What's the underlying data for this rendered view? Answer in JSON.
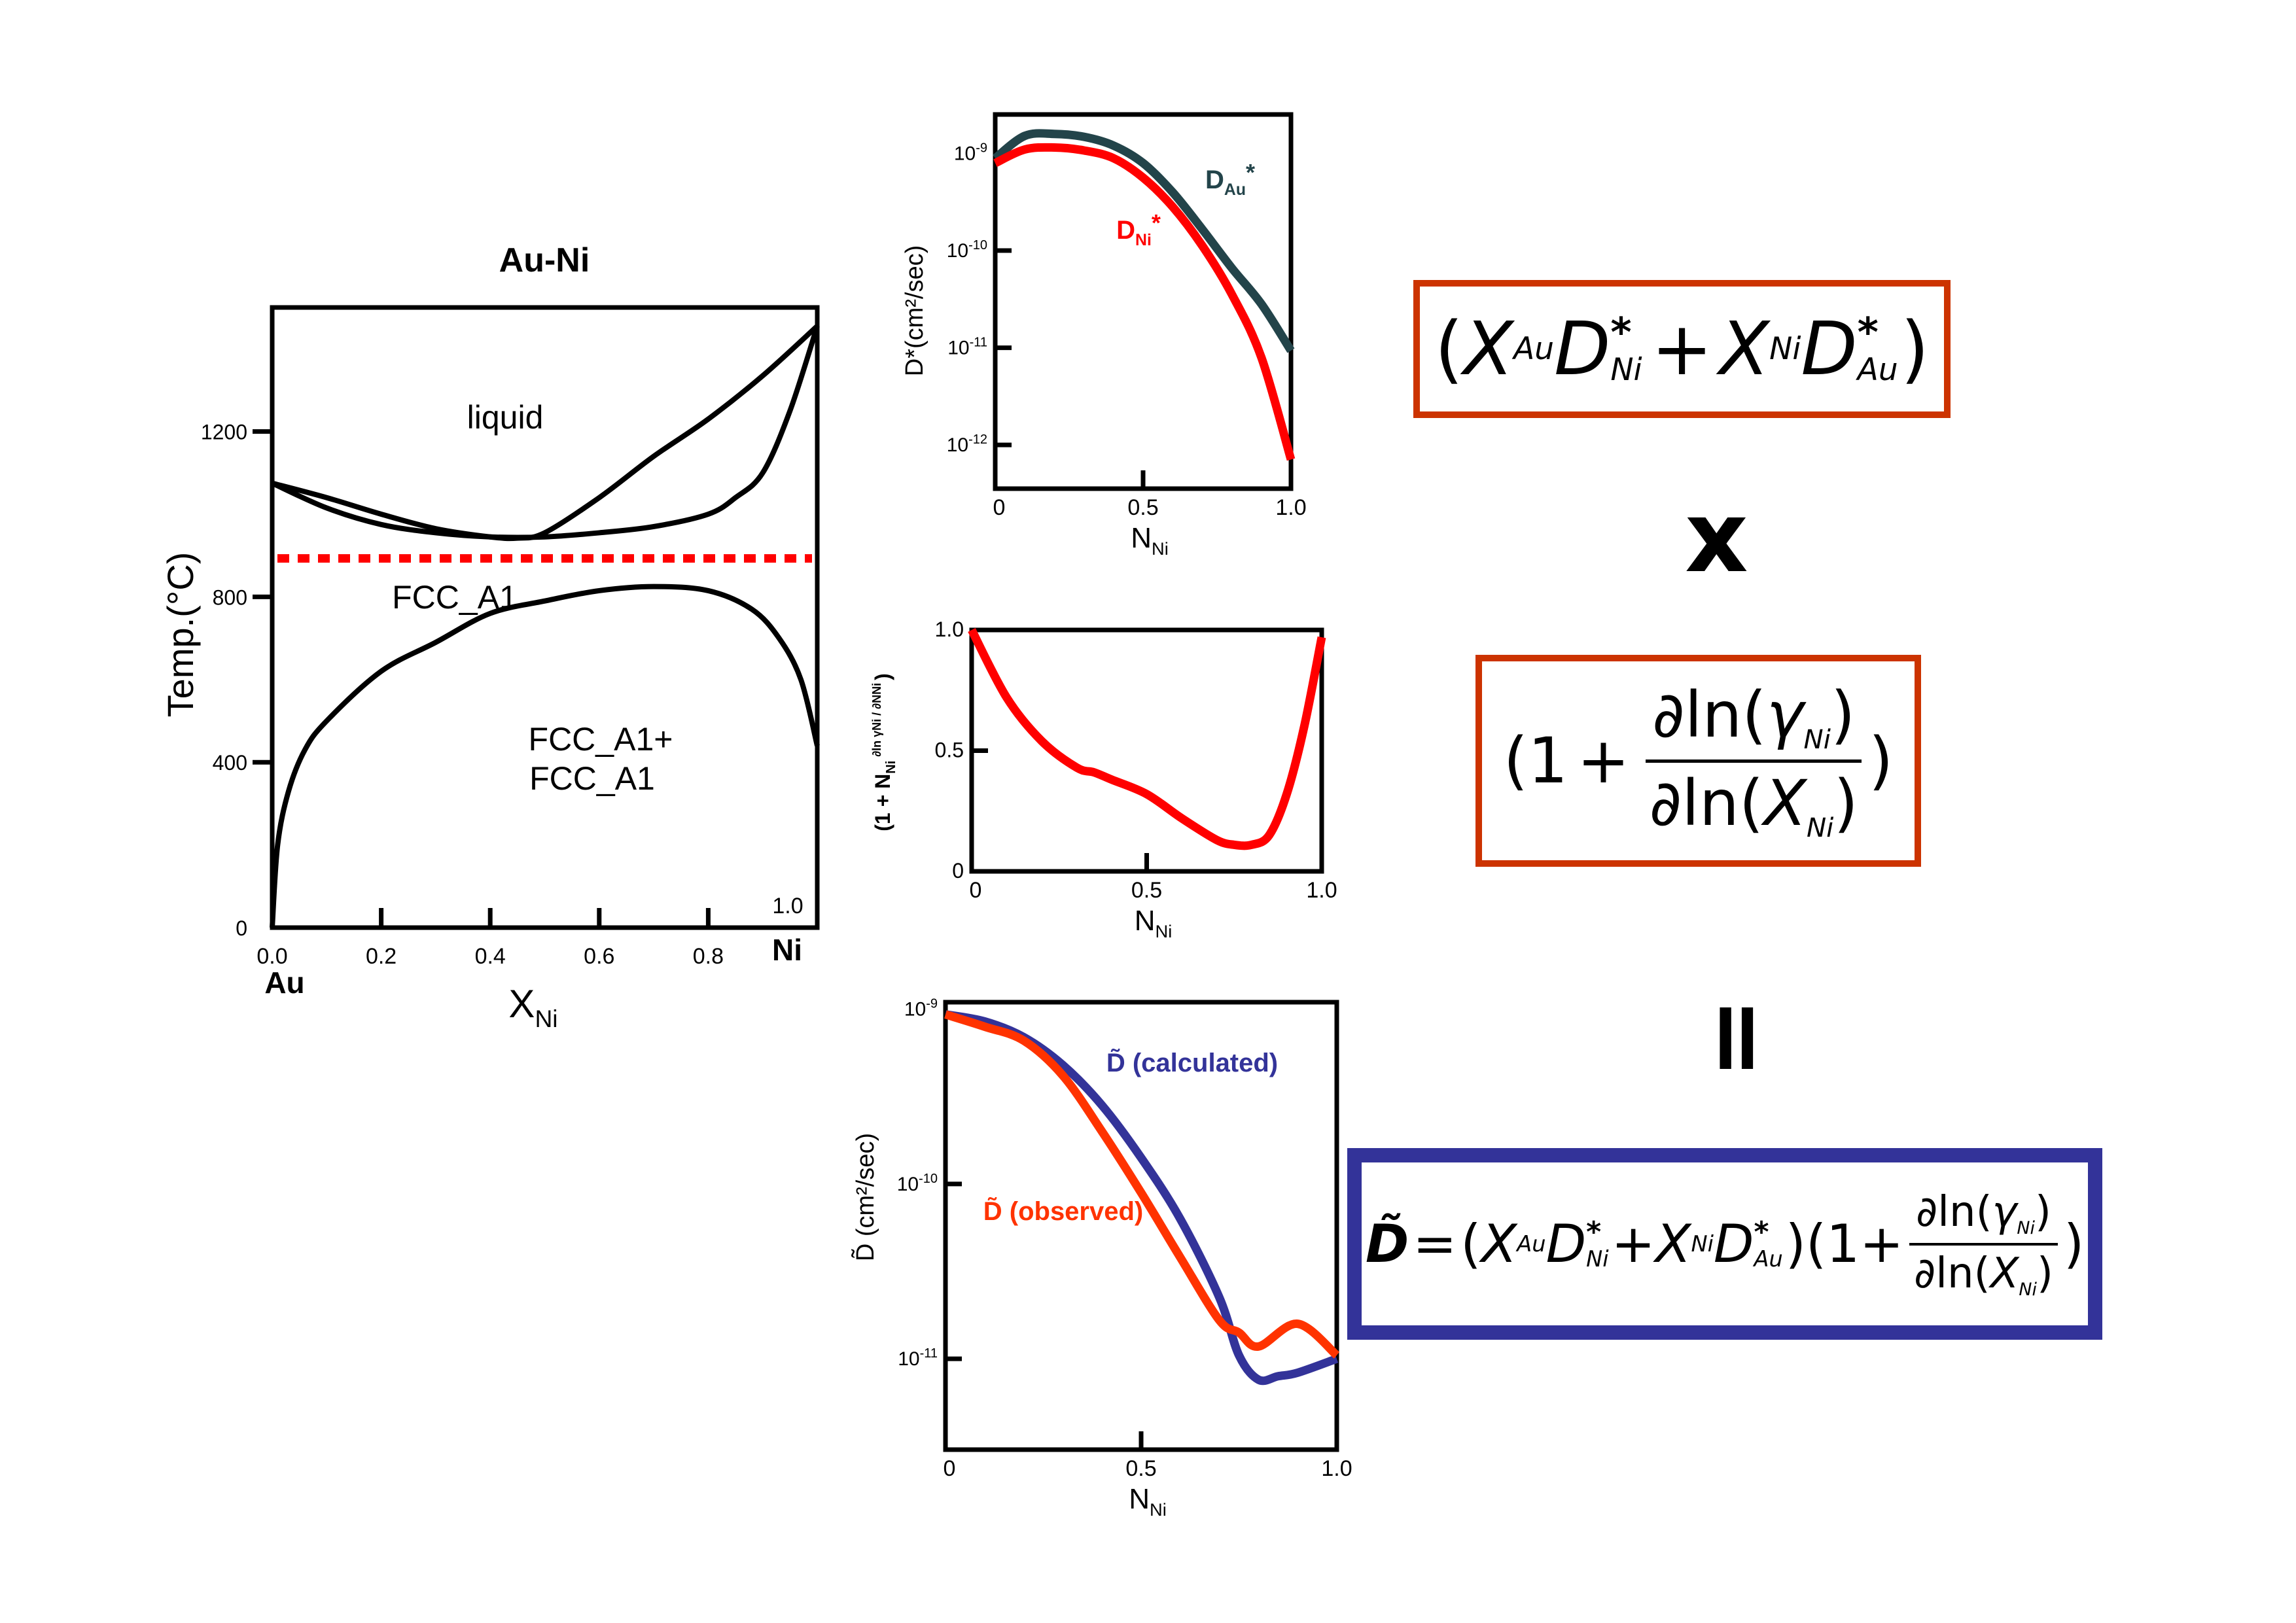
{
  "colors": {
    "red_box": "#cc3300",
    "blue_box": "#333399",
    "d_au": "#23444a",
    "d_ni": "#ff0000",
    "calculated": "#333399",
    "observed": "#ff3300",
    "dashed_line": "#ff0000"
  },
  "chart_data": [
    {
      "type": "line",
      "title": "Au-Ni",
      "xlabel": "X",
      "xlabel_sub": "Ni",
      "ylabel": "Temp.(°C)",
      "xlim": [
        0,
        1
      ],
      "ylim": [
        0,
        1500
      ],
      "xticks": [
        0.0,
        0.2,
        0.4,
        0.6,
        0.8,
        1.0
      ],
      "xtick_labels": [
        "0.0",
        "0.2",
        "0.4",
        "0.6",
        "0.8",
        "1.0"
      ],
      "yticks": [
        0,
        400,
        800,
        1200
      ],
      "ytick_labels": [
        "0",
        "400",
        "800",
        "1200"
      ],
      "end_labels": {
        "left": "Au",
        "right": "Ni"
      },
      "annotations": [
        "liquid",
        "FCC_A1",
        "FCC_A1+",
        "FCC_A1"
      ],
      "series": [
        {
          "name": "liquidus",
          "x": [
            0,
            0.1,
            0.2,
            0.3,
            0.4,
            0.45,
            0.5,
            0.6,
            0.7,
            0.8,
            0.9,
            1.0
          ],
          "y": [
            1075,
            1040,
            1000,
            965,
            945,
            942,
            955,
            1040,
            1140,
            1230,
            1335,
            1455
          ]
        },
        {
          "name": "solidus",
          "x": [
            0,
            0.1,
            0.2,
            0.3,
            0.4,
            0.5,
            0.6,
            0.7,
            0.8,
            0.85,
            0.9,
            0.95,
            1.0
          ],
          "y": [
            1075,
            1015,
            975,
            955,
            945,
            945,
            955,
            970,
            1000,
            1040,
            1100,
            1250,
            1455
          ]
        },
        {
          "name": "miscibility-gap",
          "x": [
            0,
            0.01,
            0.03,
            0.06,
            0.1,
            0.2,
            0.3,
            0.4,
            0.5,
            0.6,
            0.7,
            0.8,
            0.88,
            0.93,
            0.97,
            1.0
          ],
          "y": [
            0,
            200,
            330,
            430,
            500,
            620,
            690,
            760,
            790,
            815,
            825,
            815,
            770,
            700,
            600,
            440
          ]
        },
        {
          "name": "reference-temperature",
          "style": "dashed",
          "x": [
            0,
            1
          ],
          "y": [
            893,
            893
          ]
        }
      ]
    },
    {
      "type": "line",
      "ylabel": "D*(cm²/sec)",
      "xlabel": "N",
      "xlabel_sub": "Ni",
      "yscale": "log",
      "xlim": [
        0,
        1
      ],
      "ylim_exp": [
        -12.45,
        -8.6
      ],
      "xticks": [
        0,
        0.5,
        1.0
      ],
      "xtick_labels": [
        "0",
        "0.5",
        "1.0"
      ],
      "yticks_exp": [
        -9,
        -10,
        -11,
        -12
      ],
      "ytick_labels": [
        {
          "base": "10",
          "exp": "-9"
        },
        {
          "base": "10",
          "exp": "-10"
        },
        {
          "base": "10",
          "exp": "-11"
        },
        {
          "base": "10",
          "exp": "-12"
        }
      ],
      "series": [
        {
          "name": "D_Au*",
          "label": "D",
          "label_sub": "Au",
          "label_sup": "*",
          "x": [
            0,
            0.1,
            0.2,
            0.3,
            0.4,
            0.5,
            0.6,
            0.7,
            0.8,
            0.9,
            1.0
          ],
          "log10_y": [
            -9.05,
            -8.82,
            -8.8,
            -8.83,
            -8.92,
            -9.1,
            -9.4,
            -9.78,
            -10.18,
            -10.55,
            -11.03
          ]
        },
        {
          "name": "D_Ni*",
          "label": "D",
          "label_sub": "Ni",
          "label_sup": "*",
          "x": [
            0,
            0.1,
            0.2,
            0.3,
            0.4,
            0.5,
            0.6,
            0.7,
            0.8,
            0.9,
            1.0
          ],
          "log10_y": [
            -9.1,
            -8.96,
            -8.94,
            -8.97,
            -9.05,
            -9.25,
            -9.55,
            -9.95,
            -10.45,
            -11.1,
            -12.15
          ]
        }
      ]
    },
    {
      "type": "line",
      "ylabel": "(1 + N",
      "ylabel_sub": "Ni",
      "ylabel_frac": "∂ln γNi / ∂NNi",
      "ylabel_close": ")",
      "xlabel": "N",
      "xlabel_sub": "Ni",
      "xlim": [
        0,
        1
      ],
      "ylim": [
        0,
        1
      ],
      "xticks": [
        0,
        0.5,
        1.0
      ],
      "xtick_labels": [
        "0",
        "0.5",
        "1.0"
      ],
      "yticks": [
        0,
        0.5,
        1.0
      ],
      "ytick_labels": [
        "0",
        "0.5",
        "1.0"
      ],
      "series": [
        {
          "name": "thermodynamic-factor",
          "x": [
            0,
            0.1,
            0.2,
            0.3,
            0.35,
            0.4,
            0.5,
            0.6,
            0.7,
            0.75,
            0.8,
            0.85,
            0.9,
            0.95,
            1.0
          ],
          "y": [
            1.0,
            0.72,
            0.54,
            0.43,
            0.41,
            0.38,
            0.32,
            0.22,
            0.13,
            0.11,
            0.11,
            0.15,
            0.32,
            0.6,
            0.97
          ]
        }
      ]
    },
    {
      "type": "line",
      "ylabel": "D̃ (cm²/sec)",
      "xlabel": "N",
      "xlabel_sub": "Ni",
      "yscale": "log",
      "xlim": [
        0,
        1
      ],
      "ylim_exp": [
        -11.52,
        -8.96
      ],
      "xticks": [
        0,
        0.5,
        1.0
      ],
      "xtick_labels": [
        "0",
        "0.5",
        "1.0"
      ],
      "yticks_exp": [
        -9,
        -10,
        -11
      ],
      "ytick_labels": [
        {
          "base": "10",
          "exp": "-9"
        },
        {
          "base": "10",
          "exp": "-10"
        },
        {
          "base": "10",
          "exp": "-11"
        }
      ],
      "series": [
        {
          "name": "calculated",
          "label": "D̃ (calculated)",
          "x": [
            0,
            0.1,
            0.2,
            0.3,
            0.4,
            0.5,
            0.6,
            0.7,
            0.75,
            0.8,
            0.85,
            0.9,
            1.0
          ],
          "log10_y": [
            -9.03,
            -9.07,
            -9.16,
            -9.32,
            -9.55,
            -9.85,
            -10.2,
            -10.65,
            -10.98,
            -11.12,
            -11.1,
            -11.08,
            -11.0
          ]
        },
        {
          "name": "observed",
          "label": "D̃ (observed)",
          "x": [
            0,
            0.1,
            0.2,
            0.3,
            0.4,
            0.5,
            0.6,
            0.7,
            0.75,
            0.8,
            0.9,
            1.0
          ],
          "log10_y": [
            -9.03,
            -9.1,
            -9.18,
            -9.38,
            -9.7,
            -10.05,
            -10.42,
            -10.78,
            -10.85,
            -10.93,
            -10.8,
            -10.98
          ]
        }
      ]
    }
  ],
  "equations": {
    "term1": {
      "open": "(",
      "x": "X",
      "au": "Au",
      "d": "D",
      "ni": "Ni",
      "star": "*",
      "plus": "+",
      "close": ")"
    },
    "times": "x",
    "term2": {
      "open": "(1",
      "plus": "+",
      "partial_ln": "∂ln(",
      "gamma": "γ",
      "ni": "Ni",
      "x": "X",
      "rparen": ")",
      "close": ")"
    },
    "equals": "=",
    "full": {
      "dtilde": "D̃",
      "eq": "=",
      "open": "(",
      "x": "X",
      "au": "Au",
      "d": "D",
      "ni": "Ni",
      "star": "*",
      "plus": "+",
      "mid": ")(1",
      "partial_ln": "∂ln(",
      "gamma": "γ",
      "rparen": ")",
      "close": ")"
    }
  }
}
